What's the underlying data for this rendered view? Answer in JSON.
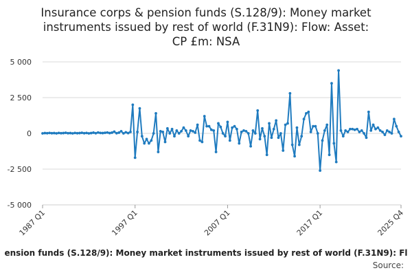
{
  "chart_data": {
    "type": "line",
    "title_lines": [
      "Insurance corps & pension funds (S.128/9): Money market",
      "instruments issued by rest of world (F.31N9): Flow: Asset:",
      "CP £m: NSA"
    ],
    "legend_label": "ension funds (S.128/9): Money market instruments issued by rest of world (F.31N9): Fl",
    "source_label": "Source:",
    "ylim": [
      -5000,
      5000
    ],
    "y_ticks": [
      5000,
      2500,
      0,
      -2500,
      -5000
    ],
    "y_tick_labels": [
      "5 000",
      "2 500",
      "0",
      "-2 500",
      "-5 000"
    ],
    "x_tick_labels": [
      "1987 Q1",
      "1997 Q1",
      "2007 Q1",
      "2017 Q1",
      "2025 Q4"
    ],
    "x_tick_index": [
      0,
      40,
      80,
      120,
      155
    ],
    "grid": true,
    "series": [
      {
        "color": "#1f7bbf",
        "start": "1987 Q1",
        "values": [
          0,
          20,
          10,
          30,
          10,
          20,
          0,
          30,
          10,
          20,
          40,
          10,
          20,
          0,
          30,
          10,
          20,
          40,
          10,
          30,
          0,
          20,
          50,
          10,
          60,
          30,
          20,
          40,
          60,
          20,
          50,
          120,
          10,
          50,
          150,
          0,
          80,
          20,
          100,
          2000,
          -1700,
          100,
          1750,
          -200,
          -700,
          -400,
          -700,
          -500,
          0,
          1400,
          -1300,
          150,
          100,
          -600,
          350,
          0,
          300,
          -200,
          200,
          0,
          150,
          400,
          200,
          -200,
          200,
          150,
          50,
          600,
          -500,
          -600,
          1200,
          500,
          500,
          250,
          200,
          -1300,
          700,
          450,
          0,
          -200,
          800,
          -500,
          400,
          500,
          300,
          -700,
          100,
          200,
          150,
          0,
          -900,
          200,
          0,
          1600,
          -400,
          350,
          -200,
          -1500,
          700,
          -300,
          300,
          900,
          -300,
          0,
          -1200,
          600,
          700,
          2800,
          -800,
          -1600,
          400,
          -800,
          -200,
          1000,
          1400,
          1500,
          100,
          500,
          500,
          0,
          -2600,
          -500,
          200,
          600,
          -1500,
          3500,
          -700,
          -2000,
          4400,
          200,
          -200,
          200,
          100,
          300,
          300,
          250,
          300,
          100,
          200,
          0,
          -300,
          1500,
          200,
          600,
          300,
          400,
          200,
          100,
          -100,
          200,
          100,
          0,
          1000,
          500,
          100,
          -200
        ]
      }
    ]
  }
}
